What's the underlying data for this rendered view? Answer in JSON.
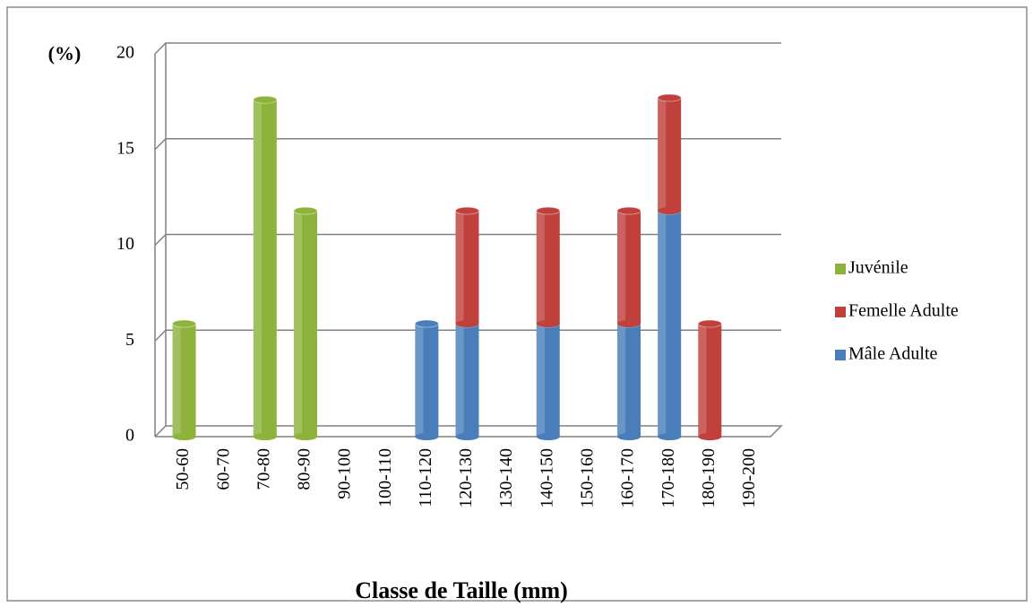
{
  "chart_data": {
    "type": "bar",
    "stacked": true,
    "y_label": "(%)",
    "x_label": "Classe de Taille (mm)",
    "categories": [
      "50-60",
      "60-70",
      "70-80",
      "80-90",
      "90-100",
      "100-110",
      "110-120",
      "120-130",
      "130-140",
      "140-150",
      "150-160",
      "160-170",
      "170-180",
      "180-190",
      "190-200"
    ],
    "series": [
      {
        "name": "Juvénile",
        "color": "#8db33d",
        "values": [
          5.9,
          null,
          17.6,
          11.8,
          null,
          null,
          null,
          null,
          null,
          null,
          null,
          null,
          null,
          null,
          null
        ]
      },
      {
        "name": "Femelle Adulte",
        "color": "#c0403c",
        "values": [
          null,
          null,
          null,
          null,
          null,
          null,
          null,
          5.9,
          null,
          5.9,
          null,
          5.9,
          5.9,
          5.9,
          null
        ]
      },
      {
        "name": "Mâle Adulte",
        "color": "#4a7ebb",
        "values": [
          null,
          null,
          null,
          null,
          null,
          null,
          5.9,
          5.9,
          null,
          5.9,
          null,
          5.9,
          11.8,
          null,
          null
        ]
      }
    ],
    "ylim": [
      0,
      20
    ],
    "yticks": [
      0,
      5,
      10,
      15,
      20
    ],
    "grid": true,
    "legend": "right"
  }
}
